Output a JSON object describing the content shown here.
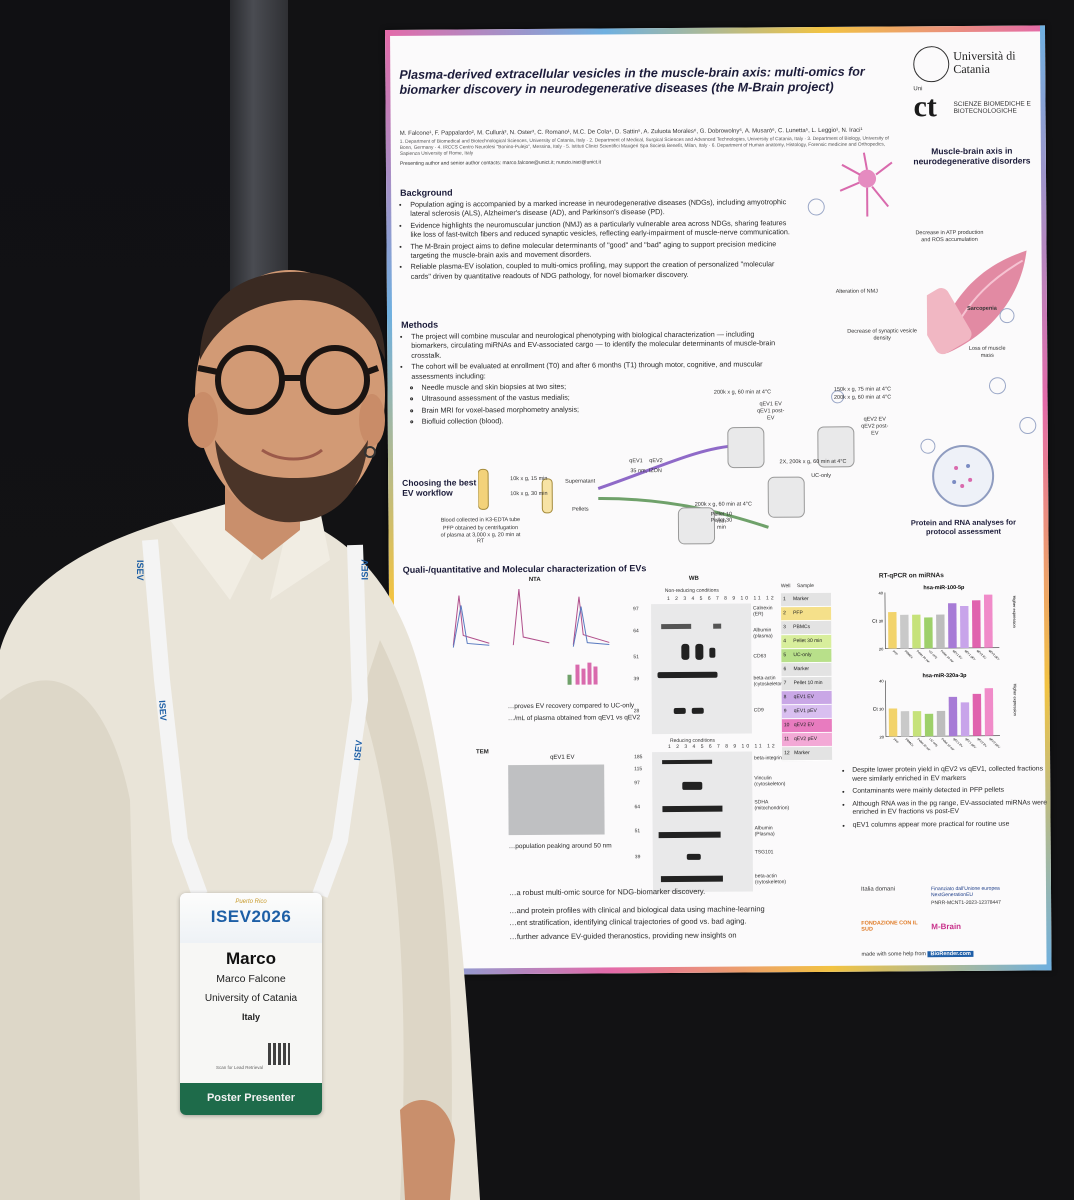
{
  "poster": {
    "title": "Plasma-derived extracellular vesicles in the muscle-brain axis: multi-omics for biomarker discovery in neurodegenerative diseases (the M-Brain project)",
    "authors": "M. Falcone¹, F. Pappalardo², M. Cullurà³, N. Oster³, C. Romano¹, M.C. De Cola⁴, D. Sattin⁵, A. Zuluota Morales⁶, G. Dobrowolny⁶, A. Musarò⁶, C. Lunetta⁵, L. Leggio¹, N. Iraci¹",
    "affiliations": "1. Department of Biomedical and Biotechnological Sciences, University of Catania, Italy · 2. Department of Medical, Surgical Sciences and Advanced Technologies, University of Catania, Italy · 3. Department of Biology, University of Bonn, Germany · 4. IRCCS Centro Neurolesi \"Bonino-Pulejo\", Messina, Italy · 5. Istituti Clinici Scientifici Maugeri Spa Società Benefit, Milan, Italy · 6. Department of Human anatomy, Histology, Forensic medicine and Orthopedics, Sapienza University of Rome, Italy",
    "contacts": "Presenting author and senior author contacts: marco.falcone@unict.it; nunzio.iraci@unict.it",
    "logo_university": "Università di Catania",
    "logo_dept": "SCIENZE BIOMEDICHE E BIOTECNOLOGICHE",
    "logo_ct": "ct",
    "logo_unict_small": "Uni",
    "background_heading": "Background",
    "background_items": [
      "Population aging is accompanied by a marked increase in neurodegenerative diseases (NDGs), including amyotrophic lateral sclerosis (ALS), Alzheimer's disease (AD), and Parkinson's disease (PD).",
      "Evidence highlights the neuromuscular junction (NMJ) as a particularly vulnerable area across NDGs, sharing features like loss of fast-twitch fibers and reduced synaptic vesicles, reflecting early-impairment of muscle-nerve communication.",
      "The M-Brain project aims to define molecular determinants of \"good\" and \"bad\" aging to support precision medicine targeting the muscle-brain axis and movement disorders.",
      "Reliable plasma-EV isolation, coupled to multi-omics profiling, may support the creation of personalized \"molecular cards\" driven by quantitative readouts of NDG pathology, for novel biomarker discovery."
    ],
    "methods_heading": "Methods",
    "methods_items": [
      "The project will combine muscular and neurological phenotyping with biological characterization — including biomarkers, circulating miRNAs and EV-associated cargo — to identify the molecular determinants of muscle-brain crosstalk.",
      "The cohort will be evaluated at enrollment (T0) and after 6 months (T1) through motor, cognitive, and muscular assessments including:"
    ],
    "methods_subitems": [
      "Needle muscle and skin biopsies at two sites;",
      "Ultrasound assessment of the vastus medialis;",
      "Brain MRI for voxel-based morphometry analysis;",
      "Biofluid collection (blood)."
    ],
    "illustration": {
      "title": "Muscle-brain axis in neurodegenerative disorders",
      "labels": [
        "Decrease in ATP production and ROS accumulation",
        "Alteration of NMJ",
        "Sarcopenia",
        "Decrease of synaptic vesicle density",
        "Loss of muscle mass"
      ]
    },
    "workflow": {
      "title": "Choosing the best EV workflow",
      "labels": [
        "10k x g, 15 min",
        "10k x g, 30 min",
        "Supernatant",
        "Pellets",
        "qEV1",
        "qEV2",
        "35 nm, IZON",
        "200k x g, 60 min at 4°C",
        "150k x g, 75 min at 4°C",
        "200k x g, 60 min at 4°C",
        "2X, 200k x g, 60 min at 4°C",
        "200k x g, 60 min at 4°C",
        "UC-only",
        "Pellet 10 min",
        "Pellet 30 min",
        "qEV1 EV",
        "qEV1 post-EV",
        "qEV2 EV",
        "qEV2 post-EV"
      ],
      "blood_note": "Blood collected in K3-EDTA tube",
      "pfp_note": "PFP obtained by centrifugation of plasma at 3,000 x g, 20 min at RT"
    },
    "protein_rna_title": "Protein and RNA analyses for protocol assessment",
    "results_heading": "Quali-/quantitative and Molecular characterization of EVs",
    "nta_heading": "NTA",
    "wb_heading": "WB",
    "wb_nonreducing": "Non-reducing conditions",
    "wb_reducing": "Reducing conditions",
    "wb_lanes": "1 2 3 4 5 6 7 8 9 10 11 12",
    "wb_markers_top": [
      "Calnexin (ER)",
      "Albumin (plasma)",
      "CD63",
      "beta-actin (cytoskeleton)",
      "CD9"
    ],
    "wb_markers_bottom": [
      "beta-integrin",
      "Vinculin (cytoskeleton)",
      "SDHA (mitochondrion)",
      "Albumin (Plasma)",
      "TSG101",
      "beta-actin (cytoskeleton)"
    ],
    "wb_kda_top": [
      "97",
      "64",
      "51",
      "39",
      "28"
    ],
    "wb_kda_bottom": [
      "185",
      "115",
      "97",
      "64",
      "51",
      "39"
    ],
    "legend_header": [
      "Well",
      "Sample"
    ],
    "legend": [
      {
        "n": "1",
        "label": "Marker",
        "color": "#e3e3e3"
      },
      {
        "n": "2",
        "label": "PFP",
        "color": "#f5e08a"
      },
      {
        "n": "3",
        "label": "PBMCs",
        "color": "#e3e3e3"
      },
      {
        "n": "4",
        "label": "Pellet 30 min",
        "color": "#d8ee9c"
      },
      {
        "n": "5",
        "label": "UC-only",
        "color": "#b8e08a"
      },
      {
        "n": "6",
        "label": "Marker",
        "color": "#e3e3e3"
      },
      {
        "n": "7",
        "label": "Pellet 10 min",
        "color": "#e3e3e3"
      },
      {
        "n": "8",
        "label": "qEV1 EV",
        "color": "#c9a7e6"
      },
      {
        "n": "9",
        "label": "qEV1 pEV",
        "color": "#d9bff0"
      },
      {
        "n": "10",
        "label": "qEV2 EV",
        "color": "#e87bbf"
      },
      {
        "n": "11",
        "label": "qEV2 pEV",
        "color": "#f3a9d6"
      },
      {
        "n": "12",
        "label": "Marker",
        "color": "#e3e3e3"
      }
    ],
    "rt_heading": "RT-qPCR on miRNAs",
    "rt_chart1_title": "hsa-miR-100-5p",
    "rt_chart2_title": "hsa-miR-320a-3p",
    "rt_ylabel": "Ct",
    "rt_arrow_label": "Higher expression",
    "nta_text_1": "…proves EV recovery compared to UC-only",
    "nta_text_2": "…/mL of plasma obtained from qEV1 vs qEV2",
    "tem_heading": "TEM",
    "tem_sub": "qEV1 EV",
    "tem_caption": "…population peaking around 50 nm",
    "conclusions": [
      "Despite lower protein yield in qEV2 vs qEV1, collected fractions were similarly enriched in EV markers",
      "Contaminants were mainly detected in PFP pellets",
      "Although RNA was in the pg range, EV-associated miRNAs were enriched in EV fractions vs post-EV",
      "qEV1 columns appear more practical for routine use"
    ],
    "bottom_lines": [
      "…a robust multi-omic source for NDG-biomarker discovery.",
      "…and protein profiles with clinical and biological data using machine-learning",
      "…ent stratification, identifying clinical trajectories of good vs. bad aging.",
      "…further advance EV-guided theranostics, providing new insights on"
    ],
    "funders": {
      "italia": "Italia domani",
      "eu": "Finanziato dall'Unione europea NextGenerationEU",
      "pnrr": "PNRR-MCNT1-2023-12378447",
      "fondazione": "FONDAZIONE CON IL SUD",
      "mbrain": "M-Brain"
    },
    "biorender_prefix": "made with some help from",
    "biorender_brand": "BioRender.com"
  },
  "badge": {
    "event_sub": "Puerto Rico",
    "event_logo": "ISEV2026",
    "first_name": "Marco",
    "full_name": "Marco Falcone",
    "organization": "University of Catania",
    "country": "Italy",
    "scan_note": "Scan for Lead Retrieval",
    "role": "Poster Presenter"
  },
  "lanyard_text": "ISEV",
  "chart_data": [
    {
      "type": "bar",
      "title": "hsa-miR-100-5p",
      "ylabel": "Ct",
      "ylim": [
        20,
        40
      ],
      "categories": [
        "PFP",
        "PBMCs",
        "Pellet 30 min",
        "UC-only",
        "Pellet 10 min",
        "qEV1 EV",
        "qEV1 pEV",
        "qEV2 EV",
        "qEV2 pEV"
      ],
      "values": [
        33,
        32,
        32,
        31,
        32,
        36,
        35,
        37,
        39
      ],
      "colors": [
        "#f2d36b",
        "#c9c9c9",
        "#c6e27a",
        "#9ed06a",
        "#bdbdbd",
        "#a77bd6",
        "#c8a4ea",
        "#e062ae",
        "#f08bc9"
      ]
    },
    {
      "type": "bar",
      "title": "hsa-miR-320a-3p",
      "ylabel": "Ct",
      "ylim": [
        20,
        40
      ],
      "categories": [
        "PFP",
        "PBMCs",
        "Pellet 30 min",
        "UC-only",
        "Pellet 10 min",
        "qEV1 EV",
        "qEV1 pEV",
        "qEV2 EV",
        "qEV2 pEV"
      ],
      "values": [
        30,
        29,
        29,
        28,
        29,
        34,
        32,
        35,
        37
      ],
      "colors": [
        "#f2d36b",
        "#c9c9c9",
        "#c6e27a",
        "#9ed06a",
        "#bdbdbd",
        "#a77bd6",
        "#c8a4ea",
        "#e062ae",
        "#f08bc9"
      ]
    }
  ]
}
